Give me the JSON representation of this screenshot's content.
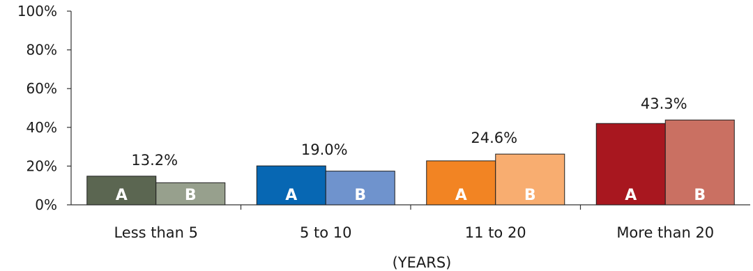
{
  "chart_data": {
    "type": "bar",
    "xlabel": "(YEARS)",
    "ylabel": "",
    "ylim": [
      0,
      100
    ],
    "yticks": [
      "0%",
      "20%",
      "40%",
      "60%",
      "80%",
      "100%"
    ],
    "categories": [
      "Less than 5",
      "5 to 10",
      "11 to 20",
      "More than 20"
    ],
    "series": [
      {
        "name": "A",
        "values": [
          14.8,
          20.1,
          22.7,
          42.0
        ]
      },
      {
        "name": "B",
        "values": [
          11.4,
          17.4,
          26.2,
          43.8
        ]
      }
    ],
    "data_labels": [
      "13.2%",
      "19.0%",
      "24.6%",
      "43.3%"
    ],
    "colors": {
      "A": [
        "#5b6651",
        "#0767b3",
        "#f28423",
        "#a8171f"
      ],
      "B": [
        "#97a08d",
        "#6f93cd",
        "#f8ad70",
        "#ca7062"
      ]
    },
    "grid": false,
    "legend": "none"
  }
}
